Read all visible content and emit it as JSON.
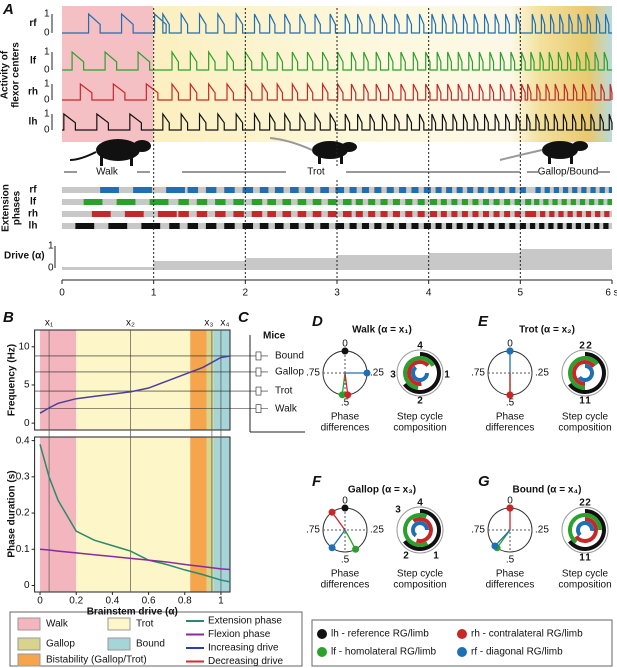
{
  "panel_a": {
    "label": "A",
    "rows": [
      "rf",
      "lf",
      "rh",
      "lh"
    ],
    "activity_label": [
      "Activity of",
      "flexor centers"
    ],
    "scale": [
      "1",
      "0"
    ],
    "extension_label": [
      "Extension",
      "phases"
    ],
    "drive_label": "Drive (α)",
    "drive_scale": [
      "1",
      "0"
    ],
    "gaits": [
      "Walk",
      "Trot",
      "Gallop/Bound"
    ],
    "xlim": [
      0,
      6
    ],
    "xticks": [
      0,
      1,
      2,
      3,
      4,
      5,
      {
        "value": 6,
        "label": "6 s"
      }
    ]
  },
  "panel_b": {
    "label": "B",
    "xlabel": "Brainstem drive (α)",
    "freq_label": "Frequency (Hz)",
    "dur_label": "Phase duration (s)",
    "xlim": [
      -0.03,
      1.05
    ],
    "xticks": [
      0,
      0.2,
      0.4,
      0.6,
      0.8,
      1
    ],
    "freq_ylim": [
      -0.9,
      12.2
    ],
    "freq_ticks": [
      0,
      5,
      10
    ],
    "dur_ylim": [
      -0.018,
      0.41
    ],
    "dur_ticks": [
      0,
      0.1,
      0.2,
      0.3,
      0.4
    ],
    "markers": [
      {
        "label": "x₁",
        "value": 0.05
      },
      {
        "label": "x₂",
        "value": 0.5
      },
      {
        "label": "x₃",
        "value": 0.95
      },
      {
        "label": "x₄",
        "value": 1.0
      }
    ],
    "region_edges": [
      0,
      0.2,
      0.83,
      0.92,
      0.96,
      1.05
    ],
    "region_colors": [
      "#f4b6be",
      "#fcf6c8",
      "#f5a54b",
      "#d8d48e",
      "#a6d5d8"
    ],
    "alpha": [
      0,
      0.05,
      0.1,
      0.2,
      0.3,
      0.4,
      0.5,
      0.6,
      0.7,
      0.8,
      0.9,
      1.0,
      1.05
    ],
    "frequency": {
      "color": "#4b3f9e",
      "values": [
        1.3,
        2.0,
        2.6,
        3.2,
        3.5,
        3.8,
        4.1,
        4.6,
        5.5,
        6.4,
        7.3,
        8.6,
        8.8
      ]
    },
    "extension": {
      "color": "#2a8a6e",
      "values": [
        0.39,
        0.3,
        0.235,
        0.15,
        0.125,
        0.11,
        0.095,
        0.07,
        0.058,
        0.043,
        0.03,
        0.015,
        0.01
      ]
    },
    "flexion": {
      "color": "#8b2a9a",
      "values": [
        0.1,
        0.098,
        0.095,
        0.09,
        0.085,
        0.08,
        0.075,
        0.07,
        0.065,
        0.058,
        0.052,
        0.046,
        0.044
      ]
    }
  },
  "panel_c": {
    "label": "C",
    "title": "Mice",
    "gaits": [
      "Bound",
      "Gallop",
      "Trot",
      "Walk"
    ],
    "frequency": [
      8.8,
      6.7,
      4.2,
      1.9
    ]
  },
  "panels": [
    {
      "label": "D",
      "title": "Walk (α = x₁)",
      "phase_ticks": [
        "0",
        ".25",
        ".5",
        ".75"
      ],
      "captions": [
        "Phase",
        "differences",
        "Step cycle",
        "composition"
      ],
      "phases": [
        0,
        0.52,
        0.48,
        0.25
      ],
      "ring_labels": [
        "4",
        "3",
        "2",
        "1"
      ]
    },
    {
      "label": "E",
      "title": "Trot (α = x₂)",
      "phase_ticks": [
        "0",
        ".25",
        ".5",
        ".75"
      ],
      "captions": [
        "Phase",
        "differences",
        "Step cycle",
        "composition"
      ],
      "phases": [
        0,
        0.5,
        0.5,
        0.0
      ],
      "ring_labels": [
        "2",
        "2",
        "1",
        "1"
      ]
    },
    {
      "label": "F",
      "title": "Gallop (α = x₃)",
      "phase_ticks": [
        "0",
        ".25",
        ".5",
        ".75"
      ],
      "captions": [
        "Phase",
        "differences",
        "Step cycle",
        "composition"
      ],
      "phases": [
        0,
        0.42,
        0.9,
        0.6
      ],
      "ring_labels": [
        "3",
        "4",
        "2",
        "1"
      ]
    },
    {
      "label": "G",
      "title": "Bound (α = x₄)",
      "phase_ticks": [
        "0",
        ".25",
        ".5",
        ".75"
      ],
      "captions": [
        "Phase",
        "differences",
        "Step cycle",
        "composition"
      ],
      "phases": [
        0,
        0.6,
        0.0,
        0.62
      ],
      "ring_labels": [
        "2",
        "2",
        "1",
        "1"
      ]
    }
  ],
  "legend_left": {
    "regions": [
      {
        "name": "Walk",
        "color": "#f4b6be"
      },
      {
        "name": "Trot",
        "color": "#fcf6c8"
      },
      {
        "name": "Gallop",
        "color": "#d8d48e"
      },
      {
        "name": "Bound",
        "color": "#a6d5d8"
      },
      {
        "name": "Bistability (Gallop/Trot)",
        "color": "#f5a54b"
      }
    ],
    "lines": [
      {
        "name": "Extension phase",
        "color": "#2a8a6e"
      },
      {
        "name": "Flexion phase",
        "color": "#8b2a9a"
      },
      {
        "name": "Increasing drive",
        "color": "#2b3fb0"
      },
      {
        "name": "Decreasing drive",
        "color": "#d22b2b"
      }
    ]
  },
  "legend_right": [
    {
      "name": "lh - reference RG/limb",
      "color": "#111111"
    },
    {
      "name": "rh - contralateral RG/limb",
      "color": "#c62828"
    },
    {
      "name": "lf - homolateral RG/limb",
      "color": "#2ca02c"
    },
    {
      "name": "rf - diagonal RG/limb",
      "color": "#1f6fb4"
    }
  ]
}
